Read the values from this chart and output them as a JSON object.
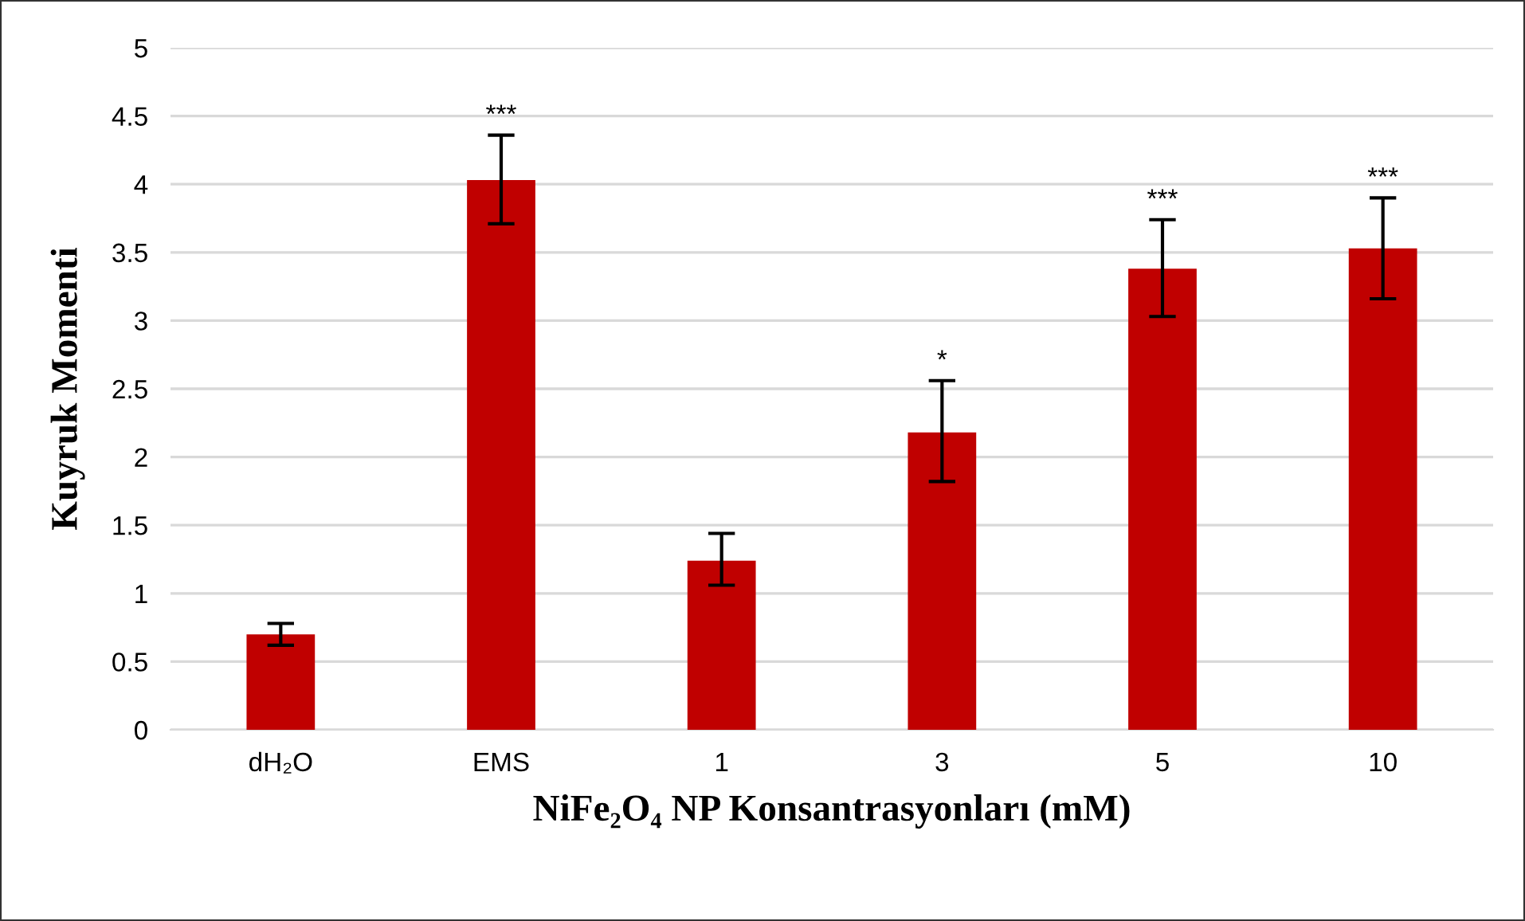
{
  "chart_data": {
    "type": "bar",
    "xlabel": "NiFe₂O₄ NP Konsantrasyonları (mM)",
    "ylabel": "Kuyruk Momenti",
    "categories": [
      "dH₂O",
      "EMS",
      "1",
      "3",
      "5",
      "10"
    ],
    "values": [
      0.7,
      4.03,
      1.24,
      2.18,
      3.38,
      3.53
    ],
    "errors": [
      [
        0.62,
        0.78
      ],
      [
        3.71,
        4.36
      ],
      [
        1.06,
        1.44
      ],
      [
        1.82,
        2.56
      ],
      [
        3.03,
        3.74
      ],
      [
        3.16,
        3.9
      ]
    ],
    "color": "#c00000",
    "ylim": [
      0,
      5
    ],
    "yticks": [
      0,
      0.5,
      1,
      1.5,
      2,
      2.5,
      3,
      3.5,
      4,
      4.5,
      5
    ],
    "grid": "y",
    "value_labels": [
      null,
      "***",
      null,
      "*",
      "***",
      "***"
    ]
  }
}
